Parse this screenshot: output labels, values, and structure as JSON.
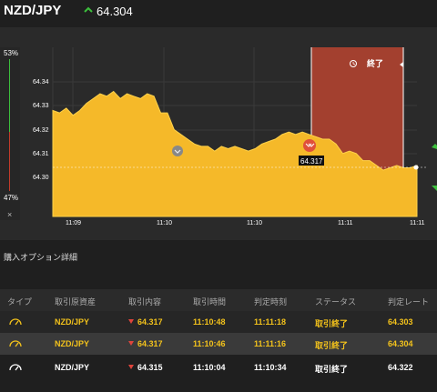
{
  "header": {
    "pair": "NZD/JPY",
    "price": "64.304",
    "trend_icon": "up-chevron-icon",
    "trend_color": "#3cbf3c"
  },
  "sidebar": {
    "top_pct": "53%",
    "bottom_pct": "47%",
    "close": "×"
  },
  "chart": {
    "end_label": "終了",
    "marker_price": "64.317",
    "colors": {
      "area": "#f5b929",
      "expiry_zone": "#a3402f",
      "grid": "#3a3a3a"
    },
    "y_ticks": [
      "64.34",
      "64.33",
      "64.32",
      "64.31",
      "64.30"
    ],
    "x_ticks": [
      "11:09",
      "11:10",
      "11:10",
      "11:11",
      "11:11"
    ]
  },
  "chart_data": {
    "type": "area",
    "y_ticks": [
      64.34,
      64.33,
      64.32,
      64.31,
      64.3
    ],
    "x_ticks": [
      "11:09",
      "11:10",
      "11:10",
      "11:11",
      "11:11"
    ],
    "ylim": [
      64.285,
      64.345
    ],
    "grid": true,
    "series": [
      {
        "values": [
          64.328,
          64.327,
          64.329,
          64.326,
          64.328,
          64.331,
          64.333,
          64.335,
          64.334,
          64.336,
          64.333,
          64.335,
          64.334,
          64.333,
          64.335,
          64.334,
          64.327,
          64.327,
          64.32,
          64.318,
          64.316,
          64.314,
          64.313,
          64.313,
          64.311,
          64.313,
          64.312,
          64.313,
          64.312,
          64.311,
          64.312,
          64.314,
          64.315,
          64.316,
          64.318,
          64.319,
          64.318,
          64.319,
          64.318,
          64.317,
          64.316,
          64.316,
          64.314,
          64.31,
          64.311,
          64.31,
          64.307,
          64.307,
          64.305,
          64.303,
          64.304,
          64.305,
          64.304,
          64.304,
          64.305
        ]
      }
    ],
    "annotations": [
      "64.317",
      "終了"
    ]
  },
  "section_title": "購入オプション詳細",
  "table": {
    "columns": [
      "タイプ",
      "取引原資産",
      "取引内容",
      "取引時間",
      "判定時刻",
      "ステータス",
      "判定レート"
    ],
    "rows": [
      {
        "asset": "NZD/JPY",
        "content": "64.317",
        "time": "11:10:48",
        "judge": "11:11:18",
        "status": "取引終了",
        "rate": "64.303"
      },
      {
        "asset": "NZD/JPY",
        "content": "64.317",
        "time": "11:10:46",
        "judge": "11:11:16",
        "status": "取引終了",
        "rate": "64.304"
      },
      {
        "asset": "NZD/JPY",
        "content": "64.315",
        "time": "11:10:04",
        "judge": "11:10:34",
        "status": "取引終了",
        "rate": "64.322"
      }
    ]
  }
}
